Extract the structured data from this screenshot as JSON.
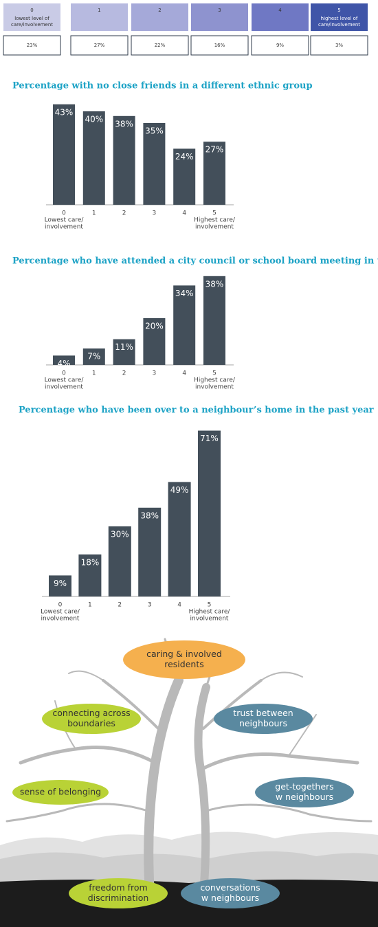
{
  "scale_table": {
    "header": [
      {
        "level": "0",
        "note": [
          "lowest level of",
          "care/involvement"
        ]
      },
      {
        "level": "1"
      },
      {
        "level": "2"
      },
      {
        "level": "3"
      },
      {
        "level": "4"
      },
      {
        "level": "5",
        "note": [
          "highest level of",
          "care/involvement"
        ]
      }
    ],
    "row": [
      "23%",
      "27%",
      "22%",
      "16%",
      "9%",
      "3%"
    ]
  },
  "chart_data": [
    {
      "type": "bar",
      "title": "Percentage with no close friends in a different ethnic group",
      "categories": [
        "0",
        "1",
        "2",
        "3",
        "4",
        "5"
      ],
      "category_notes": [
        [
          "Lowest care/",
          "involvement"
        ],
        null,
        null,
        null,
        null,
        [
          "Highest care/",
          "involvement"
        ]
      ],
      "values": [
        43,
        40,
        38,
        35,
        24,
        27
      ],
      "value_labels": [
        "43%",
        "40%",
        "38%",
        "35%",
        "24%",
        "27%"
      ],
      "color": "#434f5a"
    },
    {
      "type": "bar",
      "title": "Percentage who have attended a city council or school board meeting in the past year",
      "categories": [
        "0",
        "1",
        "2",
        "3",
        "4",
        "5"
      ],
      "category_notes": [
        [
          "Lowest care/",
          "involvement"
        ],
        null,
        null,
        null,
        null,
        [
          "Highest care/",
          "involvement"
        ]
      ],
      "values": [
        4,
        7,
        11,
        20,
        34,
        38
      ],
      "value_labels": [
        "4%",
        "7%",
        "11%",
        "20%",
        "34%",
        "38%"
      ],
      "color": "#434f5a"
    },
    {
      "type": "bar",
      "title": "Percentage who have been over to a neighbour’s home in the past year",
      "categories": [
        "0",
        "1",
        "2",
        "3",
        "4",
        "5"
      ],
      "category_notes": [
        [
          "Lowest care/",
          "involvement"
        ],
        null,
        null,
        null,
        null,
        [
          "Highest care/",
          "involvement"
        ]
      ],
      "values": [
        9,
        18,
        30,
        38,
        49,
        71
      ],
      "value_labels": [
        "9%",
        "18%",
        "30%",
        "38%",
        "49%",
        "71%"
      ],
      "color": "#434f5a"
    }
  ],
  "tree": {
    "labels": [
      {
        "lines": [
          "caring & involved",
          "residents"
        ]
      },
      {
        "lines": [
          "connecting across",
          "boundaries"
        ]
      },
      {
        "lines": [
          "trust between",
          "neighbours"
        ]
      },
      {
        "lines": [
          "sense of belonging"
        ]
      },
      {
        "lines": [
          "get-togethers",
          "w neighbours"
        ]
      },
      {
        "lines": [
          "freedom from",
          "discrimination"
        ]
      },
      {
        "lines": [
          "conversations",
          "w neighbours"
        ]
      }
    ]
  }
}
